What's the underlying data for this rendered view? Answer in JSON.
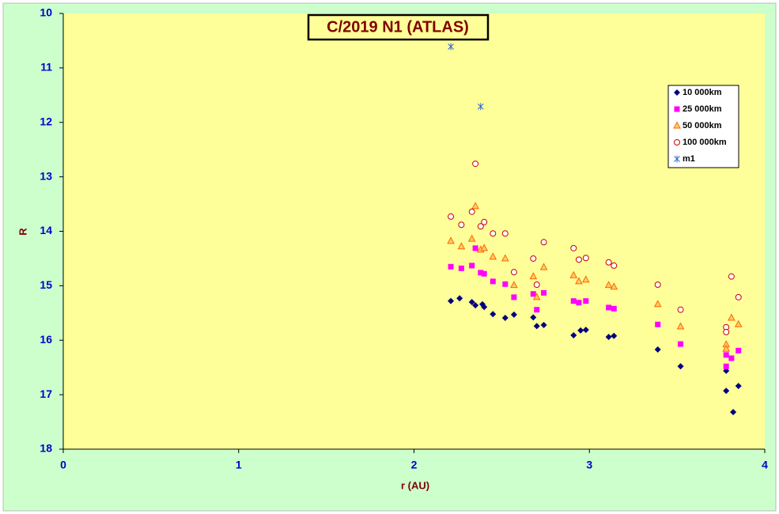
{
  "chart_data": {
    "type": "scatter",
    "title": "C/2019 N1 (ATLAS)",
    "x_label": "r (AU)",
    "y_label": "R",
    "xlim": [
      0,
      4
    ],
    "xticks": [
      0,
      1,
      2,
      3,
      4
    ],
    "ylim": [
      10,
      18
    ],
    "yticks": [
      10,
      11,
      12,
      13,
      14,
      15,
      16,
      17,
      18
    ],
    "y_reversed": true,
    "grid": false,
    "legend": "upper right",
    "series": [
      {
        "name": "10 000km",
        "color": "#000080",
        "marker": "diamond",
        "x": [
          2.21,
          2.26,
          2.33,
          2.35,
          2.39,
          2.4,
          2.45,
          2.52,
          2.57,
          2.68,
          2.7,
          2.74,
          2.91,
          2.95,
          2.98,
          3.11,
          3.14,
          3.39,
          3.52,
          3.78,
          3.78,
          3.82,
          3.85
        ],
        "values": [
          15.28,
          15.23,
          15.3,
          15.36,
          15.34,
          15.39,
          15.52,
          15.59,
          15.53,
          15.58,
          15.74,
          15.72,
          15.91,
          15.82,
          15.81,
          15.94,
          15.92,
          16.17,
          16.48,
          16.56,
          16.93,
          17.32,
          16.84
        ]
      },
      {
        "name": "25 000km",
        "color": "#ff00ff",
        "marker": "square",
        "x": [
          2.21,
          2.27,
          2.33,
          2.35,
          2.38,
          2.4,
          2.45,
          2.52,
          2.57,
          2.68,
          2.7,
          2.74,
          2.91,
          2.94,
          2.98,
          3.11,
          3.14,
          3.39,
          3.52,
          3.78,
          3.78,
          3.81,
          3.85
        ],
        "values": [
          14.65,
          14.68,
          14.63,
          14.31,
          14.76,
          14.78,
          14.92,
          14.97,
          15.21,
          15.15,
          15.44,
          15.13,
          15.28,
          15.31,
          15.28,
          15.4,
          15.42,
          15.71,
          16.07,
          16.27,
          16.48,
          16.33,
          16.19
        ]
      },
      {
        "name": "50 000km",
        "color": "#ff6600",
        "marker": "triangle",
        "x": [
          2.21,
          2.27,
          2.33,
          2.35,
          2.38,
          2.4,
          2.45,
          2.52,
          2.57,
          2.68,
          2.7,
          2.74,
          2.91,
          2.94,
          2.98,
          3.11,
          3.14,
          3.39,
          3.52,
          3.78,
          3.78,
          3.81,
          3.85
        ],
        "values": [
          14.18,
          14.28,
          14.14,
          13.54,
          14.34,
          14.31,
          14.47,
          14.5,
          14.99,
          14.83,
          15.21,
          14.66,
          14.81,
          14.92,
          14.89,
          14.99,
          15.02,
          15.34,
          15.75,
          16.08,
          16.16,
          15.59,
          15.71
        ]
      },
      {
        "name": "100 000km",
        "color": "#cc0000",
        "marker": "circle",
        "x": [
          2.21,
          2.27,
          2.33,
          2.35,
          2.38,
          2.4,
          2.45,
          2.52,
          2.57,
          2.68,
          2.7,
          2.74,
          2.91,
          2.94,
          2.98,
          3.11,
          3.14,
          3.39,
          3.52,
          3.78,
          3.78,
          3.81,
          3.85
        ],
        "values": [
          13.73,
          13.88,
          13.64,
          12.76,
          13.91,
          13.83,
          14.04,
          14.04,
          14.75,
          14.5,
          14.98,
          14.2,
          14.31,
          14.52,
          14.49,
          14.57,
          14.63,
          14.98,
          15.44,
          15.76,
          15.85,
          14.83,
          15.21
        ]
      },
      {
        "name": "m1",
        "color": "#3366cc",
        "marker": "star",
        "x": [
          2.21,
          2.38
        ],
        "values": [
          10.61,
          11.71
        ]
      }
    ]
  }
}
